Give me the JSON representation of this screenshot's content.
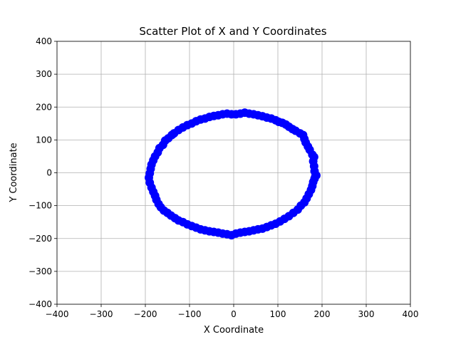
{
  "chart_data": {
    "type": "scatter",
    "title": "Scatter Plot of X and Y Coordinates",
    "xlabel": "X Coordinate",
    "ylabel": "Y Coordinate",
    "xlim": [
      -400,
      400
    ],
    "ylim": [
      -400,
      400
    ],
    "xticks": [
      -400,
      -300,
      -200,
      -100,
      0,
      100,
      200,
      300,
      400
    ],
    "yticks": [
      -400,
      -300,
      -200,
      -100,
      0,
      100,
      200,
      300,
      400
    ],
    "xtick_labels": [
      "−400",
      "−300",
      "−200",
      "−100",
      "0",
      "100",
      "200",
      "300",
      "400"
    ],
    "ytick_labels": [
      "−400",
      "−300",
      "−200",
      "−100",
      "0",
      "100",
      "200",
      "300",
      "400"
    ],
    "grid": true,
    "marker_color": "#0000ff",
    "series": [
      {
        "points": [
          [
            185,
            -10
          ],
          [
            183,
            5
          ],
          [
            182,
            20
          ],
          [
            180,
            35
          ],
          [
            182,
            48
          ],
          [
            178,
            55
          ],
          [
            172,
            70
          ],
          [
            168,
            80
          ],
          [
            163,
            92
          ],
          [
            160,
            103
          ],
          [
            157,
            115
          ],
          [
            150,
            120
          ],
          [
            140,
            128
          ],
          [
            133,
            133
          ],
          [
            125,
            140
          ],
          [
            118,
            147
          ],
          [
            110,
            152
          ],
          [
            102,
            155
          ],
          [
            95,
            160
          ],
          [
            85,
            165
          ],
          [
            75,
            168
          ],
          [
            65,
            172
          ],
          [
            55,
            175
          ],
          [
            45,
            178
          ],
          [
            35,
            180
          ],
          [
            25,
            183
          ],
          [
            15,
            180
          ],
          [
            5,
            178
          ],
          [
            -5,
            178
          ],
          [
            -15,
            180
          ],
          [
            -25,
            178
          ],
          [
            -35,
            175
          ],
          [
            -45,
            173
          ],
          [
            -55,
            170
          ],
          [
            -65,
            165
          ],
          [
            -75,
            162
          ],
          [
            -85,
            157
          ],
          [
            -95,
            150
          ],
          [
            -105,
            145
          ],
          [
            -115,
            138
          ],
          [
            -125,
            130
          ],
          [
            -135,
            120
          ],
          [
            -140,
            115
          ],
          [
            -148,
            105
          ],
          [
            -155,
            98
          ],
          [
            -160,
            85
          ],
          [
            -168,
            75
          ],
          [
            -172,
            62
          ],
          [
            -178,
            50
          ],
          [
            -182,
            38
          ],
          [
            -186,
            25
          ],
          [
            -188,
            12
          ],
          [
            -190,
            -2
          ],
          [
            -192,
            -15
          ],
          [
            -190,
            -30
          ],
          [
            -186,
            -45
          ],
          [
            -182,
            -58
          ],
          [
            -178,
            -70
          ],
          [
            -175,
            -82
          ],
          [
            -170,
            -95
          ],
          [
            -165,
            -105
          ],
          [
            -158,
            -115
          ],
          [
            -150,
            -122
          ],
          [
            -142,
            -130
          ],
          [
            -133,
            -138
          ],
          [
            -125,
            -145
          ],
          [
            -115,
            -150
          ],
          [
            -105,
            -157
          ],
          [
            -95,
            -162
          ],
          [
            -85,
            -167
          ],
          [
            -75,
            -172
          ],
          [
            -65,
            -175
          ],
          [
            -55,
            -178
          ],
          [
            -45,
            -180
          ],
          [
            -35,
            -182
          ],
          [
            -25,
            -185
          ],
          [
            -15,
            -187
          ],
          [
            -5,
            -190
          ],
          [
            5,
            -185
          ],
          [
            15,
            -182
          ],
          [
            25,
            -180
          ],
          [
            35,
            -178
          ],
          [
            45,
            -175
          ],
          [
            55,
            -172
          ],
          [
            65,
            -170
          ],
          [
            75,
            -165
          ],
          [
            85,
            -160
          ],
          [
            95,
            -155
          ],
          [
            105,
            -148
          ],
          [
            115,
            -140
          ],
          [
            125,
            -132
          ],
          [
            135,
            -122
          ],
          [
            145,
            -112
          ],
          [
            152,
            -100
          ],
          [
            160,
            -90
          ],
          [
            165,
            -78
          ],
          [
            170,
            -65
          ],
          [
            175,
            -52
          ],
          [
            178,
            -40
          ],
          [
            180,
            -28
          ],
          [
            183,
            -18
          ],
          [
            187,
            -8
          ]
        ]
      }
    ]
  }
}
